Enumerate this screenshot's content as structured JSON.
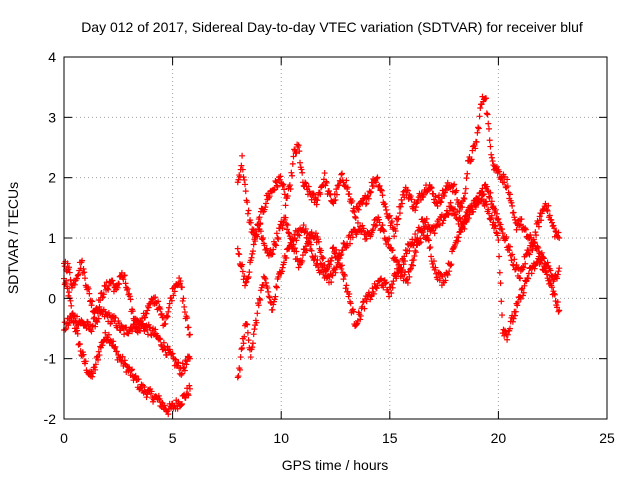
{
  "chart_data": {
    "type": "scatter",
    "title": "Day 012 of 2017, Sidereal Day-to-day VTEC variation (SDTVAR) for receiver bluf",
    "xlabel": "GPS time / hours",
    "ylabel": "SDTVAR / TECUs",
    "xlim": [
      0,
      25
    ],
    "ylim": [
      -2,
      4
    ],
    "xticks": [
      0,
      5,
      10,
      15,
      20,
      25
    ],
    "yticks": [
      -2,
      -1,
      0,
      1,
      2,
      3,
      4
    ],
    "grid": true,
    "marker": "+",
    "color": "#ff0000",
    "series": [
      {
        "name": "SDTVAR",
        "segments": [
          {
            "x": [
              0.0,
              0.2,
              0.4,
              0.6,
              0.8,
              1.0,
              1.2,
              1.4,
              1.6,
              1.8,
              2.0,
              2.2,
              2.4,
              2.6,
              2.8,
              3.0,
              3.2,
              3.4,
              3.6,
              3.8,
              4.0,
              4.2,
              4.4,
              4.6,
              4.8,
              5.0,
              5.2,
              5.4,
              5.6,
              5.8
            ],
            "y": [
              0.3,
              0.1,
              -0.3,
              -0.6,
              -0.9,
              -1.1,
              -1.3,
              -1.2,
              -0.9,
              -0.7,
              -0.6,
              -0.7,
              -0.9,
              -1.0,
              -1.1,
              -1.2,
              -1.3,
              -1.4,
              -1.5,
              -1.55,
              -1.6,
              -1.65,
              -1.7,
              -1.8,
              -1.85,
              -1.8,
              -1.75,
              -1.7,
              -1.6,
              -1.5
            ]
          },
          {
            "x": [
              0.0,
              0.2,
              0.4,
              0.6,
              0.8,
              1.0,
              1.2,
              1.4,
              1.6,
              1.8,
              2.0,
              2.2,
              2.4,
              2.6,
              2.8,
              3.0,
              3.2,
              3.4,
              3.6,
              3.8,
              4.0,
              4.2,
              4.4,
              4.6,
              4.8,
              5.0,
              5.2,
              5.4,
              5.6,
              5.8
            ],
            "y": [
              -0.5,
              -0.4,
              -0.3,
              -0.35,
              -0.4,
              -0.45,
              -0.5,
              -0.4,
              -0.3,
              -0.25,
              -0.3,
              -0.35,
              -0.4,
              -0.5,
              -0.55,
              -0.5,
              -0.45,
              -0.4,
              -0.45,
              -0.5,
              -0.55,
              -0.6,
              -0.7,
              -0.8,
              -0.9,
              -1.0,
              -1.1,
              -1.2,
              -1.1,
              -1.0
            ]
          },
          {
            "x": [
              0.0,
              0.2,
              0.4,
              0.6,
              0.8,
              1.0,
              1.2,
              1.4,
              1.6,
              1.8,
              2.0,
              2.2,
              2.4,
              2.6,
              2.8,
              3.0,
              3.2,
              3.4,
              3.6,
              3.8,
              4.0,
              4.2,
              4.4,
              4.6,
              4.8,
              5.0,
              5.2,
              5.4,
              5.6,
              5.8
            ],
            "y": [
              0.6,
              0.5,
              0.2,
              0.4,
              0.6,
              0.3,
              0.0,
              -0.2,
              -0.1,
              0.1,
              0.2,
              0.3,
              0.1,
              0.4,
              0.3,
              0.0,
              -0.3,
              -0.5,
              -0.4,
              -0.2,
              -0.1,
              0.0,
              -0.2,
              -0.4,
              -0.2,
              0.1,
              0.3,
              0.2,
              -0.3,
              -0.6
            ]
          },
          {
            "x": [
              8.0,
              8.2,
              8.4,
              8.6,
              8.8,
              9.0,
              9.2,
              9.4,
              9.6,
              9.8,
              10.0,
              10.2,
              10.4,
              10.6,
              10.8,
              11.0,
              11.2,
              11.4,
              11.6,
              11.8,
              12.0,
              12.2,
              12.4,
              12.6,
              12.8,
              13.0,
              13.2,
              13.4,
              13.6,
              13.8,
              14.0,
              14.2,
              14.4,
              14.6,
              14.8,
              15.0,
              15.2,
              15.4,
              15.6,
              15.8,
              16.0,
              16.2,
              16.4,
              16.6,
              16.8,
              17.0,
              17.2,
              17.4,
              17.6,
              17.8,
              18.0,
              18.2,
              18.4,
              18.6,
              18.8,
              19.0,
              19.2,
              19.4,
              19.6,
              19.8,
              20.0,
              20.2,
              20.4,
              20.6,
              20.8,
              21.0,
              21.2,
              21.4,
              21.6,
              21.8,
              22.0,
              22.2,
              22.4,
              22.6,
              22.8
            ],
            "y": [
              1.9,
              2.3,
              1.6,
              1.2,
              1.0,
              1.3,
              1.5,
              1.7,
              1.8,
              1.9,
              2.0,
              1.6,
              1.8,
              2.4,
              2.5,
              1.9,
              1.8,
              1.7,
              1.6,
              1.8,
              2.0,
              1.7,
              1.6,
              1.8,
              2.0,
              1.9,
              1.6,
              1.4,
              1.5,
              1.6,
              1.7,
              1.9,
              2.0,
              1.8,
              1.5,
              1.3,
              1.1,
              1.4,
              1.7,
              1.8,
              1.6,
              1.5,
              1.7,
              1.8,
              1.9,
              1.7,
              1.6,
              1.7,
              1.8,
              1.9,
              1.8,
              1.5,
              1.6,
              2.2,
              2.4,
              2.6,
              3.2,
              3.4,
              2.6,
              2.2,
              2.1,
              2.0,
              1.9,
              1.5,
              1.2,
              1.3,
              1.1,
              1.0,
              0.9,
              1.2,
              1.4,
              1.6,
              1.3,
              1.1,
              1.0
            ]
          },
          {
            "x": [
              8.0,
              8.2,
              8.4,
              8.6,
              8.8,
              9.0,
              9.2,
              9.4,
              9.6,
              9.8,
              10.0,
              10.2,
              10.4,
              10.6,
              10.8,
              11.0,
              11.2,
              11.4,
              11.6,
              11.8,
              12.0,
              12.2,
              12.4,
              12.6,
              12.8,
              13.0,
              13.2,
              13.4,
              13.6,
              13.8,
              14.0,
              14.2,
              14.4,
              14.6,
              14.8,
              15.0,
              15.2,
              15.4,
              15.6,
              15.8,
              16.0,
              16.2,
              16.4,
              16.6,
              16.8,
              17.0,
              17.2,
              17.4,
              17.6,
              17.8,
              18.0,
              18.2,
              18.4,
              18.6,
              18.8,
              19.0,
              19.2,
              19.4,
              19.6,
              19.8,
              20.0,
              20.2,
              20.4,
              20.6,
              20.8,
              21.0,
              21.2,
              21.4,
              21.6,
              21.8,
              22.0,
              22.2,
              22.4,
              22.6,
              22.8
            ],
            "y": [
              0.8,
              0.5,
              0.2,
              0.6,
              1.0,
              1.2,
              0.9,
              0.7,
              0.8,
              1.0,
              1.2,
              1.3,
              1.0,
              0.8,
              0.6,
              0.7,
              0.9,
              1.1,
              1.0,
              0.8,
              0.5,
              0.3,
              0.4,
              0.6,
              0.8,
              0.9,
              1.0,
              1.1,
              1.2,
              1.1,
              1.0,
              1.2,
              1.3,
              1.2,
              1.0,
              0.9,
              0.7,
              0.5,
              0.4,
              0.3,
              0.5,
              0.8,
              1.0,
              1.1,
              0.9,
              0.6,
              0.4,
              0.3,
              0.4,
              0.6,
              0.9,
              1.1,
              1.3,
              1.4,
              1.5,
              1.6,
              1.7,
              1.8,
              1.7,
              1.5,
              1.3,
              1.1,
              0.9,
              0.7,
              0.5,
              0.4,
              0.6,
              0.8,
              0.9,
              0.8,
              0.6,
              0.4,
              0.2,
              0.0,
              -0.2
            ]
          },
          {
            "x": [
              8.0,
              8.2,
              8.4,
              8.6,
              8.8,
              9.0,
              9.2,
              9.4,
              9.6,
              9.8,
              10.0,
              10.2,
              10.4,
              10.6,
              10.8,
              11.0,
              11.2,
              11.4,
              11.6,
              11.8,
              12.0,
              12.2,
              12.4,
              12.6,
              12.8,
              13.0,
              13.2,
              13.4,
              13.6,
              13.8,
              14.0,
              14.2,
              14.4,
              14.6,
              14.8,
              15.0,
              15.2,
              15.4,
              15.6,
              15.8,
              16.0,
              16.2,
              16.4,
              16.6,
              16.8,
              17.0,
              17.2,
              17.4,
              17.6,
              17.8,
              18.0,
              18.2,
              18.4,
              18.6,
              18.8,
              19.0,
              19.2,
              19.4,
              19.6,
              19.8,
              20.0,
              20.2,
              20.4,
              20.6,
              20.8,
              21.0,
              21.2,
              21.4,
              21.6,
              21.8,
              22.0,
              22.2,
              22.4,
              22.6,
              22.8
            ],
            "y": [
              -1.4,
              -0.8,
              -0.4,
              -0.9,
              -0.5,
              0.0,
              0.3,
              0.1,
              -0.2,
              0.2,
              0.5,
              0.7,
              0.9,
              1.0,
              1.1,
              1.2,
              1.0,
              0.8,
              0.6,
              0.5,
              0.4,
              0.6,
              0.8,
              0.7,
              0.5,
              0.2,
              -0.1,
              -0.4,
              -0.3,
              -0.1,
              0.0,
              0.1,
              0.2,
              0.3,
              0.2,
              0.1,
              0.3,
              0.5,
              0.6,
              0.8,
              0.9,
              1.0,
              1.2,
              1.3,
              1.2,
              1.1,
              1.2,
              1.3,
              1.4,
              1.5,
              1.4,
              1.3,
              1.2,
              1.4,
              1.5,
              1.6,
              1.7,
              1.6,
              1.4,
              1.2,
              1.0,
              -0.5,
              -0.6,
              -0.4,
              -0.2,
              0.0,
              0.2,
              0.4,
              0.5,
              0.6,
              0.7,
              0.6,
              0.4,
              0.3,
              0.5
            ]
          }
        ]
      }
    ]
  }
}
